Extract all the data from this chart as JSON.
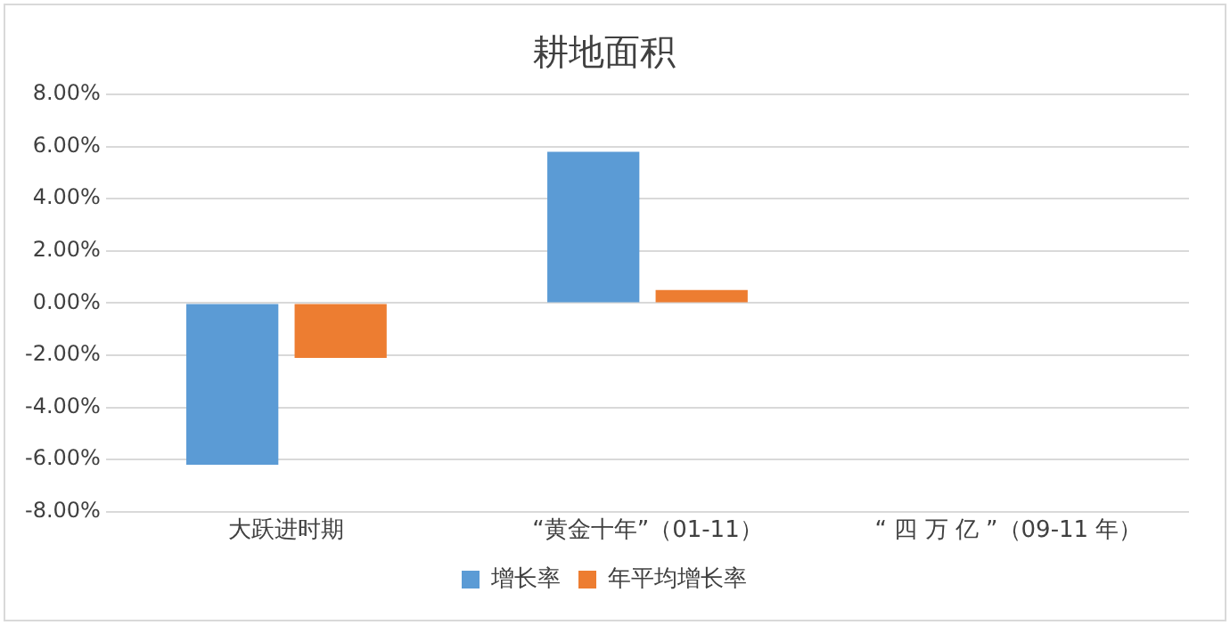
{
  "chart_data": {
    "type": "bar",
    "title": "耕地面积",
    "categories": [
      "大跃进时期",
      "“黄金十年”（01-11）",
      "“ 四 万 亿 ”（09-11 年）"
    ],
    "series": [
      {
        "name": "增长率",
        "color": "#5b9bd5",
        "values": [
          -6.2,
          5.8,
          null
        ]
      },
      {
        "name": "年平均增长率",
        "color": "#ed7d31",
        "values": [
          -2.1,
          0.5,
          null
        ]
      }
    ],
    "ylim": [
      -8,
      8
    ],
    "yticks": [
      {
        "value": -8,
        "label": "-8.00%"
      },
      {
        "value": -6,
        "label": "-6.00%"
      },
      {
        "value": -4,
        "label": "-4.00%"
      },
      {
        "value": -2,
        "label": "-2.00%"
      },
      {
        "value": 0,
        "label": "0.00%"
      },
      {
        "value": 2,
        "label": "2.00%"
      },
      {
        "value": 4,
        "label": "4.00%"
      },
      {
        "value": 6,
        "label": "6.00%"
      },
      {
        "value": 8,
        "label": "8.00%"
      }
    ],
    "grid": "y",
    "legend": "bottom"
  }
}
